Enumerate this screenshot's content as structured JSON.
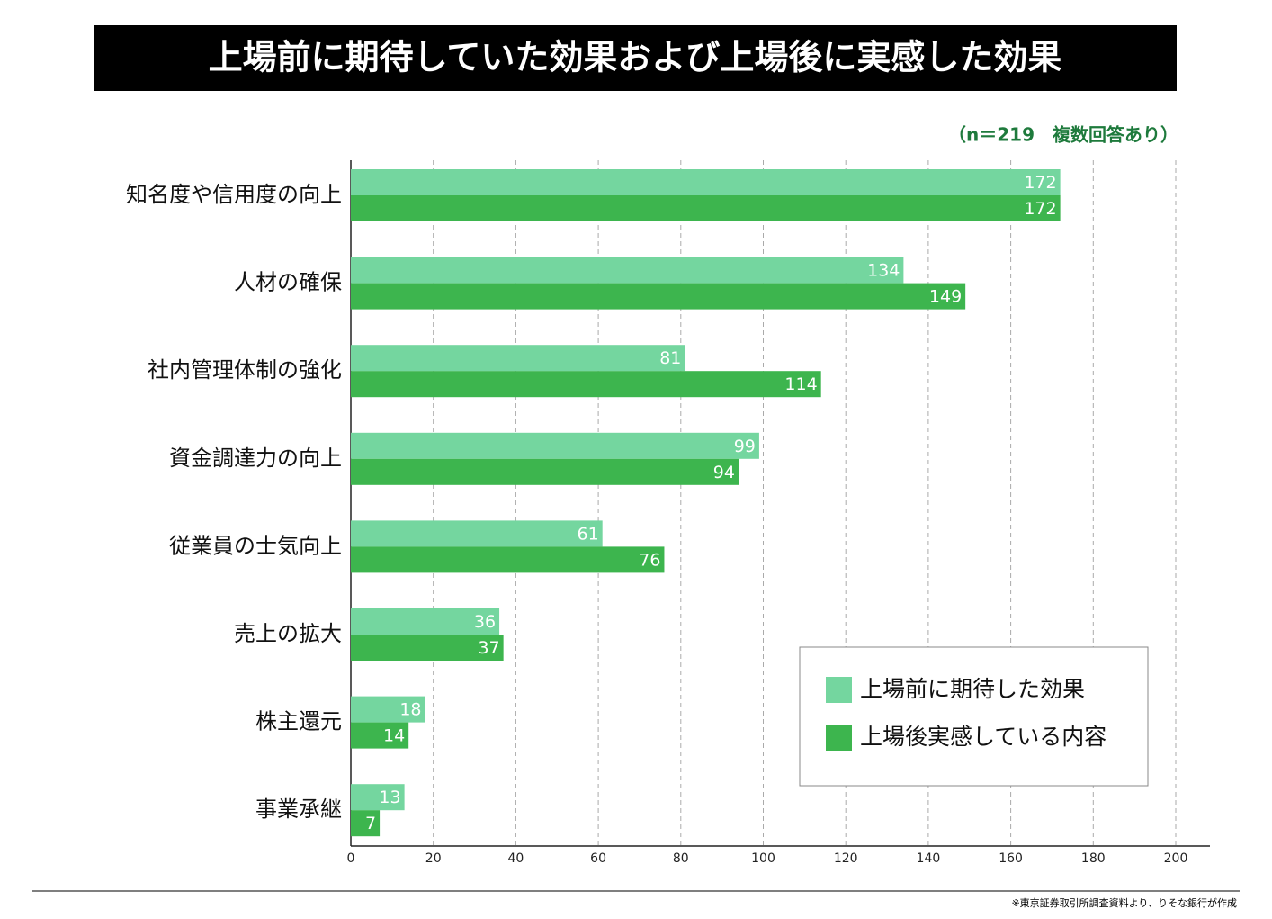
{
  "chart_data": {
    "type": "bar",
    "orientation": "horizontal",
    "title": "上場前に期待していた効果および上場後に実感した効果",
    "note": "（n＝219　複数回答あり）",
    "source": "※東京証券取引所調査資料より、りそな銀行が作成",
    "categories": [
      "知名度や信用度の向上",
      "人材の確保",
      "社内管理体制の強化",
      "資金調達力の向上",
      "従業員の士気向上",
      "売上の拡大",
      "株主還元",
      "事業承継"
    ],
    "series": [
      {
        "name": "上場前に期待した効果",
        "color": "#74d69f",
        "values": [
          172,
          134,
          81,
          99,
          61,
          36,
          18,
          13
        ]
      },
      {
        "name": "上場後実感している内容",
        "color": "#3db54e",
        "values": [
          172,
          149,
          114,
          94,
          76,
          37,
          14,
          7
        ]
      }
    ],
    "xlim": [
      0,
      200
    ],
    "xticks": [
      0,
      20,
      40,
      60,
      80,
      100,
      120,
      140,
      160,
      180,
      200
    ],
    "grid": true,
    "legend": "lower-right"
  }
}
